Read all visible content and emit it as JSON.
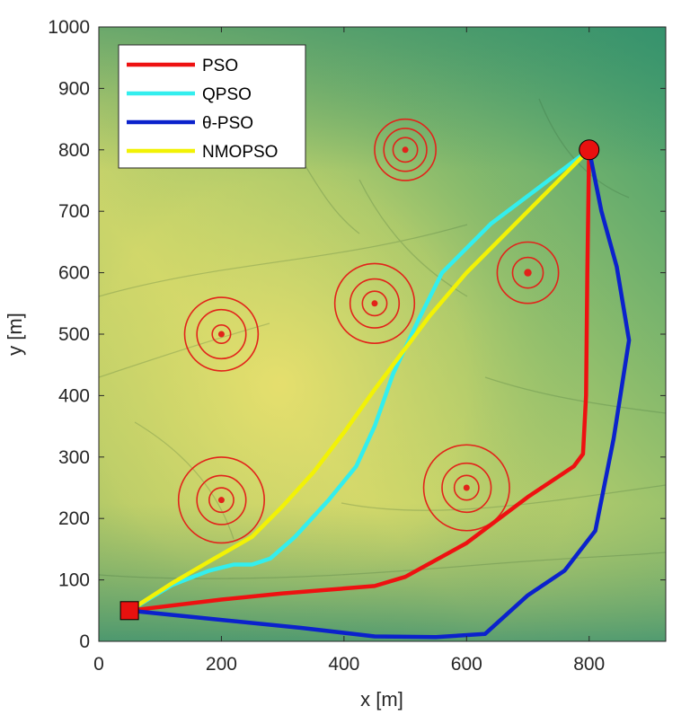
{
  "chart_data": {
    "type": "line",
    "xlabel": "x [m]",
    "ylabel": "y [m]",
    "xlim": [
      0,
      925
    ],
    "ylim": [
      0,
      1000
    ],
    "xticks": [
      0,
      200,
      400,
      600,
      800
    ],
    "yticks": [
      0,
      100,
      200,
      300,
      400,
      500,
      600,
      700,
      800,
      900,
      1000
    ],
    "grid": false,
    "legend_position": "top-left",
    "background": "terrain elevation shaded relief map",
    "start": {
      "x": 50,
      "y": 50,
      "marker": "square",
      "color": "#e8110f"
    },
    "goal": {
      "x": 800,
      "y": 800,
      "marker": "circle",
      "color": "#e8110f"
    },
    "threats": [
      {
        "x": 500,
        "y": 800,
        "radii": [
          20,
          35,
          50
        ]
      },
      {
        "x": 700,
        "y": 600,
        "radii": [
          5,
          25,
          50
        ]
      },
      {
        "x": 450,
        "y": 550,
        "radii": [
          20,
          40,
          65
        ]
      },
      {
        "x": 200,
        "y": 500,
        "radii": [
          15,
          40,
          60
        ]
      },
      {
        "x": 200,
        "y": 230,
        "radii": [
          20,
          40,
          70
        ]
      },
      {
        "x": 600,
        "y": 250,
        "radii": [
          20,
          40,
          70
        ]
      }
    ],
    "series": [
      {
        "name": "PSO",
        "color": "#ee1111",
        "points": [
          [
            50,
            50
          ],
          [
            200,
            68
          ],
          [
            300,
            78
          ],
          [
            450,
            90
          ],
          [
            500,
            105
          ],
          [
            600,
            160
          ],
          [
            700,
            235
          ],
          [
            775,
            285
          ],
          [
            790,
            305
          ],
          [
            795,
            400
          ],
          [
            797,
            600
          ],
          [
            800,
            800
          ]
        ]
      },
      {
        "name": "QPSO",
        "color": "#33eeee",
        "points": [
          [
            50,
            50
          ],
          [
            120,
            92
          ],
          [
            180,
            115
          ],
          [
            220,
            125
          ],
          [
            250,
            125
          ],
          [
            280,
            135
          ],
          [
            320,
            170
          ],
          [
            375,
            230
          ],
          [
            420,
            285
          ],
          [
            450,
            350
          ],
          [
            480,
            435
          ],
          [
            520,
            520
          ],
          [
            560,
            600
          ],
          [
            640,
            680
          ],
          [
            720,
            740
          ],
          [
            800,
            800
          ]
        ]
      },
      {
        "name": "θ-PSO",
        "color": "#0b22cc",
        "points": [
          [
            50,
            50
          ],
          [
            200,
            35
          ],
          [
            330,
            22
          ],
          [
            450,
            8
          ],
          [
            550,
            7
          ],
          [
            630,
            12
          ],
          [
            700,
            75
          ],
          [
            760,
            115
          ],
          [
            810,
            180
          ],
          [
            840,
            330
          ],
          [
            865,
            490
          ],
          [
            845,
            610
          ],
          [
            820,
            700
          ],
          [
            800,
            800
          ]
        ]
      },
      {
        "name": "NMOPSO",
        "color": "#f2f205",
        "points": [
          [
            50,
            50
          ],
          [
            120,
            95
          ],
          [
            180,
            130
          ],
          [
            250,
            170
          ],
          [
            300,
            220
          ],
          [
            350,
            275
          ],
          [
            400,
            340
          ],
          [
            450,
            410
          ],
          [
            495,
            470
          ],
          [
            540,
            530
          ],
          [
            600,
            600
          ],
          [
            700,
            700
          ],
          [
            800,
            800
          ]
        ]
      }
    ]
  }
}
